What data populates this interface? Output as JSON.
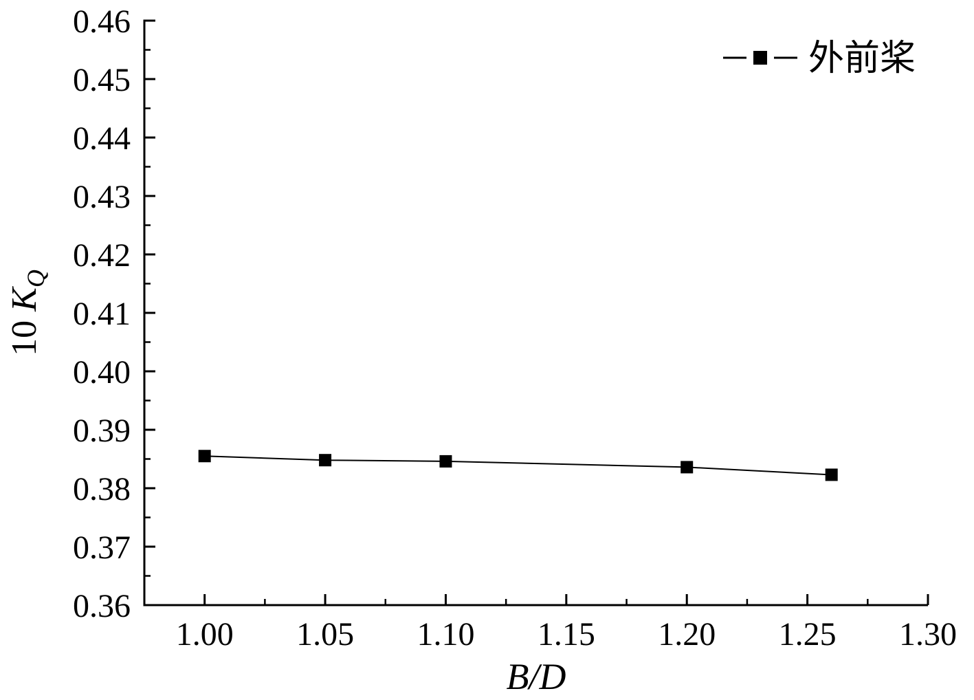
{
  "chart_data": {
    "type": "line",
    "title": "",
    "xlabel": "B/D",
    "ylabel": "10 K_Q",
    "xlim": [
      0.975,
      1.3
    ],
    "ylim": [
      0.36,
      0.46
    ],
    "x_ticks": [
      1.0,
      1.05,
      1.1,
      1.15,
      1.2,
      1.25,
      1.3
    ],
    "y_ticks": [
      0.36,
      0.37,
      0.38,
      0.39,
      0.4,
      0.41,
      0.42,
      0.43,
      0.44,
      0.45,
      0.46
    ],
    "x_minor_step": 0.025,
    "y_minor_step": 0.005,
    "tick_decimals": 2,
    "grid": false,
    "legend_position": "top-right",
    "series": [
      {
        "name": "外前桨",
        "marker": "filled-square",
        "line_style": "solid",
        "color": "#000000",
        "x": [
          1.0,
          1.05,
          1.1,
          1.2,
          1.26
        ],
        "y": [
          0.3855,
          0.3848,
          0.3846,
          0.3836,
          0.3823
        ]
      }
    ]
  },
  "axes": {
    "x_label": "B/D",
    "y_label_prefix": "10 ",
    "y_label_symbol": "K",
    "y_label_subscript": "Q"
  },
  "legend": {
    "series_label": "外前桨"
  },
  "colors": {
    "axis": "#000000",
    "series": "#000000",
    "background": "#ffffff"
  }
}
